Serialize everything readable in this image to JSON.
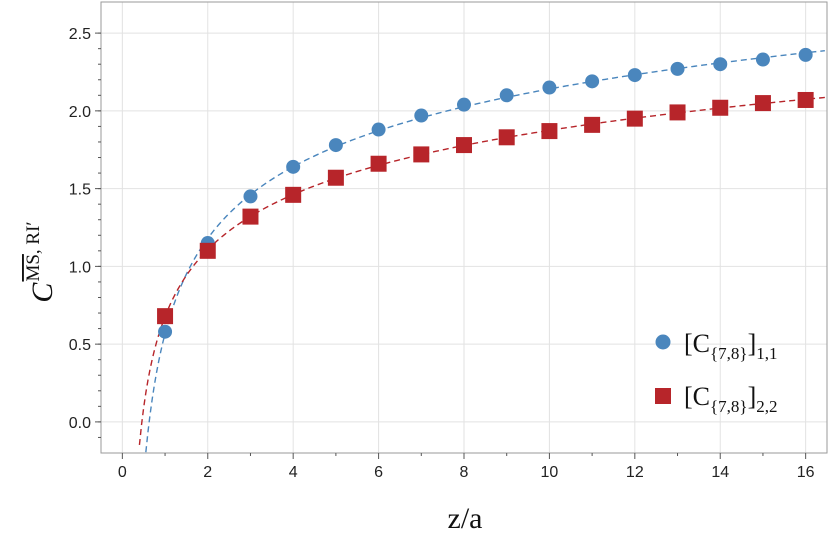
{
  "chart_data": {
    "type": "scatter",
    "title": "",
    "xlabel": "z/a",
    "ylabel": {
      "base": "C",
      "sup_overline": "MS",
      "sup_rest": ", RI′"
    },
    "xlim": [
      -0.5,
      16.5
    ],
    "ylim": [
      -0.2,
      2.7
    ],
    "xticks": [
      0,
      2,
      4,
      6,
      8,
      10,
      12,
      14,
      16
    ],
    "xtick_labels": [
      "0",
      "2",
      "4",
      "6",
      "8",
      "10",
      "12",
      "14",
      "16"
    ],
    "yticks": [
      0.0,
      0.5,
      1.0,
      1.5,
      2.0,
      2.5
    ],
    "ytick_labels": [
      "0.0",
      "0.5",
      "1.0",
      "1.5",
      "2.0",
      "2.5"
    ],
    "grid": true,
    "legend_position": "bottom-right",
    "series": [
      {
        "name": "[C{7,8}]1,1",
        "label_main": "[C",
        "label_sub1": "{7,8}",
        "label_mid": "]",
        "label_sub2": "1,1",
        "marker": "circle",
        "color": "#4a86bd",
        "x": [
          1,
          2,
          3,
          4,
          5,
          6,
          7,
          8,
          9,
          10,
          11,
          12,
          13,
          14,
          15,
          16
        ],
        "y": [
          0.58,
          1.15,
          1.45,
          1.64,
          1.78,
          1.88,
          1.97,
          2.04,
          2.1,
          2.15,
          2.19,
          2.23,
          2.27,
          2.3,
          2.33,
          2.36
        ]
      },
      {
        "name": "[C{7,8}]2,2",
        "label_main": "[C",
        "label_sub1": "{7,8}",
        "label_mid": "]",
        "label_sub2": "2,2",
        "marker": "square",
        "color": "#b7252a",
        "x": [
          1,
          2,
          3,
          4,
          5,
          6,
          7,
          8,
          9,
          10,
          11,
          12,
          13,
          14,
          15,
          16
        ],
        "y": [
          0.68,
          1.1,
          1.32,
          1.46,
          1.57,
          1.66,
          1.72,
          1.78,
          1.83,
          1.87,
          1.91,
          1.95,
          1.99,
          2.02,
          2.05,
          2.07
        ]
      }
    ]
  }
}
